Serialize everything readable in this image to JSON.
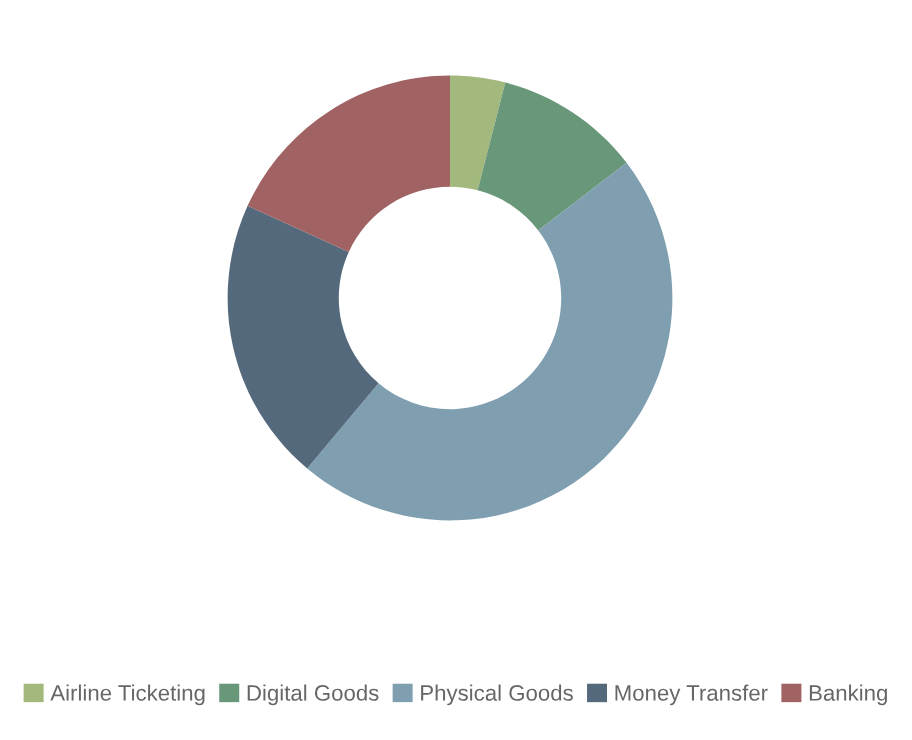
{
  "chart_data": {
    "type": "donut",
    "categories": [
      "Airline Ticketing",
      "Digital Goods",
      "Physical Goods",
      "Money Transfer",
      "Banking"
    ],
    "values": [
      4.0,
      10.6,
      46.5,
      20.7,
      18.2
    ],
    "colors": [
      "#a2b87c",
      "#68977a",
      "#7f9fb0",
      "#546a7c",
      "#a06262"
    ],
    "legend": "bottom"
  }
}
